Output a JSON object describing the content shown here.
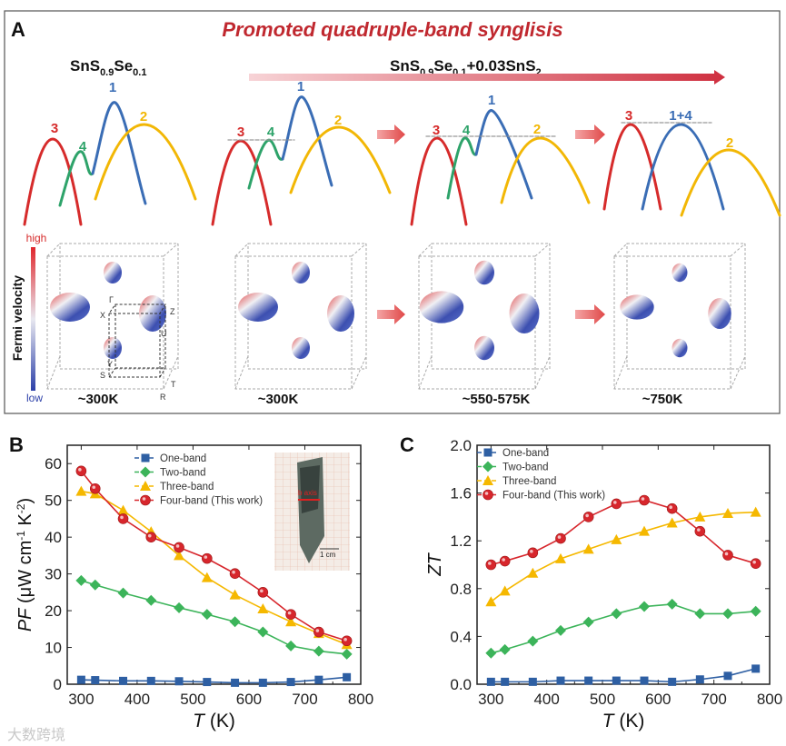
{
  "panel_a": {
    "label": "A",
    "title": "Promoted quadruple-band synglisis",
    "formula_left": {
      "base": "SnS",
      "s1": "0.9",
      "mid": "Se",
      "s2": "0.1"
    },
    "formula_right": {
      "base": "SnS",
      "s1": "0.9",
      "mid": "Se",
      "s2": "0.1",
      "tail": "+0.03SnS",
      "s3": "2"
    },
    "band_labels": {
      "b1": "1",
      "b2": "2",
      "b3": "3",
      "b4": "4",
      "b14": "1+4"
    },
    "colorbar": {
      "title": "Fermi velocity",
      "high": "high",
      "low": "low"
    },
    "bz_points": [
      "Γ",
      "X",
      "Z",
      "U",
      "Y",
      "S",
      "T",
      "R"
    ],
    "temperatures": [
      "~300K",
      "~300K",
      "~550-575K",
      "~750K"
    ],
    "colors": {
      "title": "#c0282f",
      "band1": "#3a6db5",
      "band2": "#f2b705",
      "band3": "#d62b2b",
      "band4": "#2ea36a"
    }
  },
  "panel_b": {
    "label": "B",
    "inset_axis": "b axis",
    "inset_scale": "1 cm"
  },
  "panel_c": {
    "label": "C"
  },
  "watermark": "大数跨境",
  "chart_data": [
    {
      "type": "line",
      "title": "",
      "xlabel": "T (K)",
      "ylabel_main": "PF",
      "ylabel_unit": "(μW cm-1 K-2)",
      "xlim": [
        275,
        800
      ],
      "ylim": [
        0,
        65
      ],
      "xticks": [
        300,
        400,
        500,
        600,
        700,
        800
      ],
      "yticks": [
        0,
        10,
        20,
        30,
        40,
        50,
        60
      ],
      "legend_position": "top-center",
      "x": [
        300,
        325,
        375,
        425,
        475,
        525,
        575,
        625,
        675,
        725,
        775
      ],
      "series": [
        {
          "name": "One-band",
          "marker": "square",
          "color": "#2e5fa3",
          "values": [
            1.2,
            1.1,
            0.9,
            0.9,
            0.8,
            0.6,
            0.4,
            0.4,
            0.6,
            1.2,
            1.9
          ]
        },
        {
          "name": "Two-band",
          "marker": "diamond",
          "color": "#3cb45a",
          "values": [
            28.2,
            27.0,
            24.8,
            22.8,
            20.8,
            19.0,
            17.0,
            14.2,
            10.4,
            9.0,
            8.2
          ]
        },
        {
          "name": "Three-band",
          "marker": "triangle",
          "color": "#f5b800",
          "values": [
            52.5,
            51.8,
            47.3,
            41.5,
            35.0,
            29.0,
            24.3,
            20.5,
            17.0,
            13.8,
            10.8
          ]
        },
        {
          "name": "Four-band (This work)",
          "marker": "circle",
          "color": "#d7262c",
          "values": [
            58.0,
            53.2,
            45.0,
            40.0,
            37.2,
            34.2,
            30.1,
            25.0,
            19.0,
            14.2,
            11.8
          ]
        }
      ]
    },
    {
      "type": "line",
      "title": "",
      "xlabel": "T (K)",
      "ylabel_main": "ZT",
      "ylabel_unit": "",
      "xlim": [
        275,
        800
      ],
      "ylim": [
        0,
        2.0
      ],
      "xticks": [
        300,
        400,
        500,
        600,
        700,
        800
      ],
      "yticks": [
        "0.0",
        "0.4",
        "0.8",
        "1.2",
        "1.6",
        "2.0"
      ],
      "legend_position": "top-left",
      "x": [
        300,
        325,
        375,
        425,
        475,
        525,
        575,
        625,
        675,
        725,
        775
      ],
      "series": [
        {
          "name": "One-band",
          "marker": "square",
          "color": "#2e5fa3",
          "values": [
            0.02,
            0.02,
            0.02,
            0.03,
            0.03,
            0.03,
            0.03,
            0.02,
            0.04,
            0.07,
            0.13
          ]
        },
        {
          "name": "Two-band",
          "marker": "diamond",
          "color": "#3cb45a",
          "values": [
            0.26,
            0.29,
            0.36,
            0.45,
            0.52,
            0.59,
            0.65,
            0.67,
            0.59,
            0.59,
            0.61
          ]
        },
        {
          "name": "Three-band",
          "marker": "triangle",
          "color": "#f5b800",
          "values": [
            0.69,
            0.78,
            0.93,
            1.05,
            1.13,
            1.21,
            1.28,
            1.35,
            1.4,
            1.43,
            1.44
          ]
        },
        {
          "name": "Four-band (This work)",
          "marker": "circle",
          "color": "#d7262c",
          "values": [
            1.0,
            1.03,
            1.1,
            1.22,
            1.4,
            1.51,
            1.54,
            1.47,
            1.28,
            1.08,
            1.01
          ]
        }
      ]
    }
  ]
}
